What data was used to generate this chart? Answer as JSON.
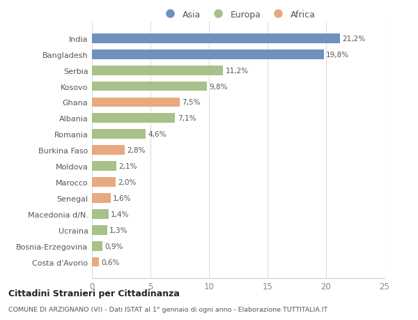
{
  "categories": [
    "Costa d'Avorio",
    "Bosnia-Erzegovina",
    "Ucraina",
    "Macedonia d/N.",
    "Senegal",
    "Marocco",
    "Moldova",
    "Burkina Faso",
    "Romania",
    "Albania",
    "Ghana",
    "Kosovo",
    "Serbia",
    "Bangladesh",
    "India"
  ],
  "values": [
    0.6,
    0.9,
    1.3,
    1.4,
    1.6,
    2.0,
    2.1,
    2.8,
    4.6,
    7.1,
    7.5,
    9.8,
    11.2,
    19.8,
    21.2
  ],
  "labels": [
    "0,6%",
    "0,9%",
    "1,3%",
    "1,4%",
    "1,6%",
    "2,0%",
    "2,1%",
    "2,8%",
    "4,6%",
    "7,1%",
    "7,5%",
    "9,8%",
    "11,2%",
    "19,8%",
    "21,2%"
  ],
  "colors": [
    "#e8a97e",
    "#a8c08a",
    "#a8c08a",
    "#a8c08a",
    "#e8a97e",
    "#e8a97e",
    "#a8c08a",
    "#e8a97e",
    "#a8c08a",
    "#a8c08a",
    "#e8a97e",
    "#a8c08a",
    "#a8c08a",
    "#7090c0",
    "#7090c0"
  ],
  "legend_labels": [
    "Asia",
    "Europa",
    "Africa"
  ],
  "legend_colors": [
    "#7090c0",
    "#a8c08a",
    "#e8a97e"
  ],
  "xlim": [
    0,
    25
  ],
  "xticks": [
    0,
    5,
    10,
    15,
    20,
    25
  ],
  "title1": "Cittadini Stranieri per Cittadinanza",
  "title2": "COMUNE DI ARZIGNANO (VI) - Dati ISTAT al 1° gennaio di ogni anno - Elaborazione TUTTITALIA.IT",
  "background_color": "#ffffff",
  "bar_height": 0.6,
  "figsize": [
    6.0,
    4.6
  ],
  "dpi": 100
}
